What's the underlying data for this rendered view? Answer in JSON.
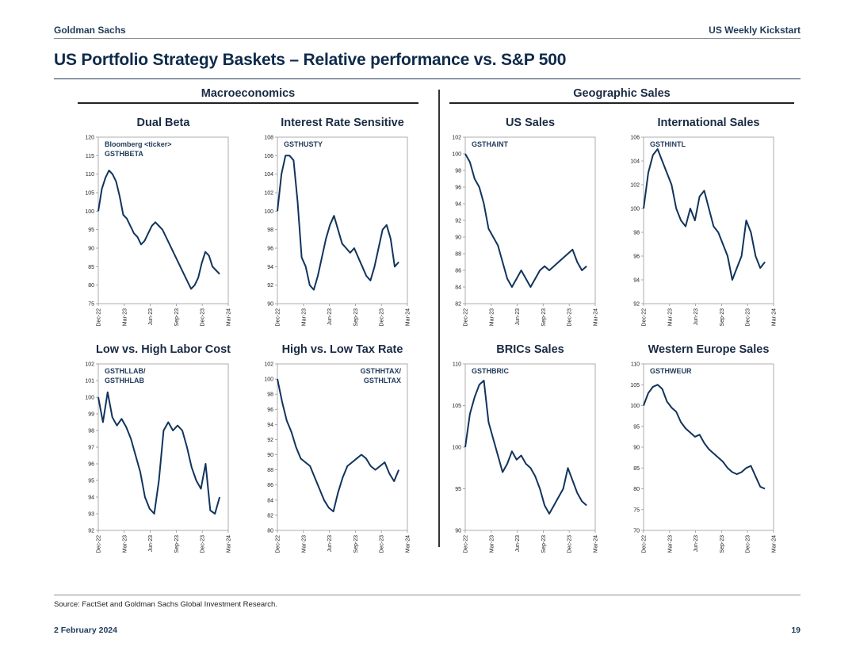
{
  "header": {
    "brand": "Goldman Sachs",
    "publication": "US Weekly Kickstart"
  },
  "page_title": "US Portfolio Strategy Baskets – Relative performance vs. S&P 500",
  "sections": {
    "left": "Macroeconomics",
    "right": "Geographic Sales"
  },
  "source": "Source: FactSet and Goldman Sachs Global Investment Research.",
  "footer": {
    "date": "2 February 2024",
    "page": "19"
  },
  "colors": {
    "line": "#10345c",
    "text": "#1a2b44"
  },
  "chart_data": [
    {
      "type": "line",
      "title": "Dual Beta",
      "annotation": [
        "Bloomberg <ticker>",
        "GSTHBETA"
      ],
      "annotation_align": "left",
      "yticks": [
        75,
        80,
        85,
        90,
        95,
        100,
        105,
        110,
        115,
        120
      ],
      "ylim": [
        75,
        120
      ],
      "xticks": [
        "Dec-22",
        "Mar-23",
        "Jun-23",
        "Sep-23",
        "Dec-23",
        "Mar-24"
      ],
      "series": [
        {
          "name": "GSTHBETA",
          "values": [
            100,
            106,
            109,
            111,
            110,
            108,
            104,
            99,
            98,
            96,
            94,
            93,
            91,
            92,
            94,
            96,
            97,
            96,
            95,
            93,
            91,
            89,
            87,
            85,
            83,
            81,
            79,
            80,
            82,
            86,
            89,
            88,
            85,
            84,
            83
          ]
        }
      ]
    },
    {
      "type": "line",
      "title": "Interest Rate Sensitive",
      "annotation": [
        "GSTHUSTY"
      ],
      "annotation_align": "left",
      "yticks": [
        90,
        92,
        94,
        96,
        98,
        100,
        102,
        104,
        106,
        108
      ],
      "ylim": [
        90,
        108
      ],
      "xticks": [
        "Dec-22",
        "Mar-23",
        "Jun-23",
        "Sep-23",
        "Dec-23",
        "Mar-24"
      ],
      "series": [
        {
          "name": "GSTHUSTY",
          "values": [
            100,
            104,
            106,
            106,
            105.5,
            101,
            95,
            94,
            92,
            91.5,
            93,
            95,
            97,
            98.5,
            99.5,
            98,
            96.5,
            96,
            95.5,
            96,
            95,
            94,
            93,
            92.5,
            94,
            96,
            98,
            98.5,
            97,
            94,
            94.5
          ]
        }
      ]
    },
    {
      "type": "line",
      "title": "US Sales",
      "annotation": [
        "GSTHAINT"
      ],
      "annotation_align": "left",
      "yticks": [
        82,
        84,
        86,
        88,
        90,
        92,
        94,
        96,
        98,
        100,
        102
      ],
      "ylim": [
        82,
        102
      ],
      "xticks": [
        "Dec-22",
        "Mar-23",
        "Jun-23",
        "Sep-23",
        "Dec-23",
        "Mar-24"
      ],
      "series": [
        {
          "name": "GSTHAINT",
          "values": [
            100,
            99,
            97,
            96,
            94,
            91,
            90,
            89,
            87,
            85,
            84,
            85,
            86,
            85,
            84,
            85,
            86,
            86.5,
            86,
            86.5,
            87,
            87.5,
            88,
            88.5,
            87,
            86,
            86.5
          ]
        }
      ]
    },
    {
      "type": "line",
      "title": "International Sales",
      "annotation": [
        "GSTHINTL"
      ],
      "annotation_align": "left",
      "yticks": [
        92,
        94,
        96,
        98,
        100,
        102,
        104,
        106
      ],
      "ylim": [
        92,
        106
      ],
      "xticks": [
        "Dec-22",
        "Mar-23",
        "Jun-23",
        "Sep-23",
        "Dec-23",
        "Mar-24"
      ],
      "series": [
        {
          "name": "GSTHINTL",
          "values": [
            100,
            103,
            104.5,
            105,
            104,
            103,
            102,
            100,
            99,
            98.5,
            100,
            99,
            101,
            101.5,
            100,
            98.5,
            98,
            97,
            96,
            94,
            95,
            96,
            99,
            98,
            96,
            95,
            95.5
          ]
        }
      ]
    },
    {
      "type": "line",
      "title": "Low vs. High Labor Cost",
      "annotation": [
        "GSTHLLAB/",
        "GSTHHLAB"
      ],
      "annotation_align": "left",
      "yticks": [
        92,
        93,
        94,
        95,
        96,
        97,
        98,
        99,
        100,
        101,
        102
      ],
      "ylim": [
        92,
        102
      ],
      "xticks": [
        "Dec-22",
        "Mar-23",
        "Jun-23",
        "Sep-23",
        "Dec-23",
        "Mar-24"
      ],
      "series": [
        {
          "name": "GSTHLLAB/GSTHHLAB",
          "values": [
            100,
            98.5,
            100.3,
            98.8,
            98.3,
            98.7,
            98.2,
            97.5,
            96.5,
            95.5,
            94,
            93.3,
            93,
            95,
            98,
            98.5,
            98,
            98.3,
            98,
            97,
            95.8,
            95,
            94.5,
            96,
            93.2,
            93,
            94
          ]
        }
      ]
    },
    {
      "type": "line",
      "title": "High vs. Low Tax Rate",
      "annotation": [
        "GSTHHTAX/",
        "GSTHLTAX"
      ],
      "annotation_align": "right",
      "yticks": [
        80,
        82,
        84,
        86,
        88,
        90,
        92,
        94,
        96,
        98,
        100,
        102
      ],
      "ylim": [
        80,
        102
      ],
      "xticks": [
        "Dec-22",
        "Mar-23",
        "Jun-23",
        "Sep-23",
        "Dec-23",
        "Mar-24"
      ],
      "series": [
        {
          "name": "GSTHHTAX/GSTHLTAX",
          "values": [
            100,
            97,
            94.5,
            93,
            91,
            89.5,
            89,
            88.5,
            87,
            85.5,
            84,
            83,
            82.5,
            85,
            87,
            88.5,
            89,
            89.5,
            90,
            89.5,
            88.5,
            88,
            88.5,
            89,
            87.5,
            86.5,
            88
          ]
        }
      ]
    },
    {
      "type": "line",
      "title": "BRICs Sales",
      "annotation": [
        "GSTHBRIC"
      ],
      "annotation_align": "left",
      "yticks": [
        90,
        95,
        100,
        105,
        110
      ],
      "ylim": [
        90,
        110
      ],
      "xticks": [
        "Dec-22",
        "Mar-23",
        "Jun-23",
        "Sep-23",
        "Dec-23",
        "Mar-24"
      ],
      "series": [
        {
          "name": "GSTHBRIC",
          "values": [
            100,
            104,
            106,
            107.5,
            108,
            103,
            101,
            99,
            97,
            98,
            99.5,
            98.5,
            99,
            98,
            97.5,
            96.5,
            95,
            93,
            92,
            93,
            94,
            95,
            97.5,
            96,
            94.5,
            93.5,
            93
          ]
        }
      ]
    },
    {
      "type": "line",
      "title": "Western Europe Sales",
      "annotation": [
        "GSTHWEUR"
      ],
      "annotation_align": "left",
      "yticks": [
        70,
        75,
        80,
        85,
        90,
        95,
        100,
        105,
        110
      ],
      "ylim": [
        70,
        110
      ],
      "xticks": [
        "Dec-22",
        "Mar-23",
        "Jun-23",
        "Sep-23",
        "Dec-23",
        "Mar-24"
      ],
      "series": [
        {
          "name": "GSTHWEUR",
          "values": [
            100,
            103,
            104.5,
            105,
            104,
            101,
            99.5,
            98.5,
            96,
            94.5,
            93.5,
            92.5,
            93,
            91,
            89.5,
            88.5,
            87.5,
            86.5,
            85,
            84,
            83.5,
            84,
            85,
            85.5,
            83,
            80.5,
            80
          ]
        }
      ]
    }
  ]
}
